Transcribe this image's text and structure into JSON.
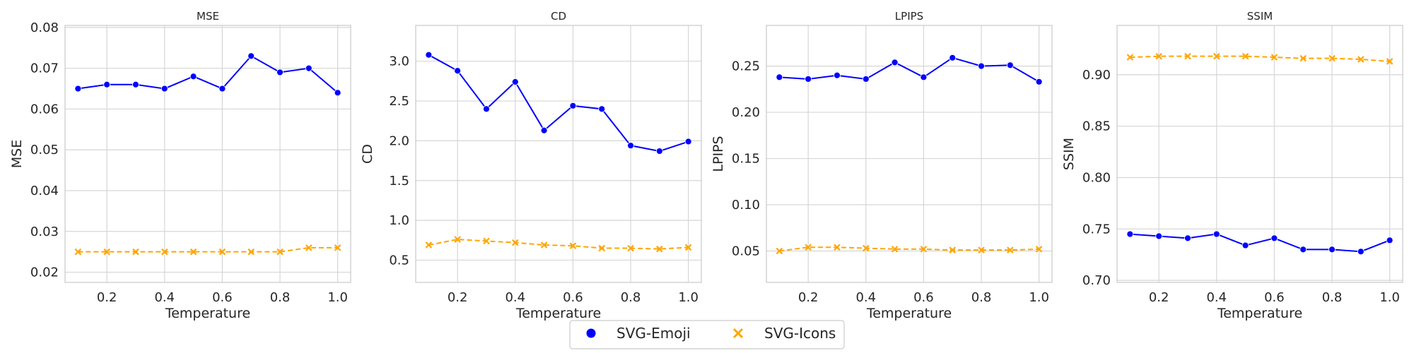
{
  "chart_data": [
    {
      "type": "line",
      "title": "MSE",
      "xlabel": "Temperature",
      "ylabel": "MSE",
      "x": [
        0.1,
        0.2,
        0.3,
        0.4,
        0.5,
        0.6,
        0.7,
        0.8,
        0.9,
        1.0
      ],
      "xlim": [
        0.055,
        1.045
      ],
      "ylim": [
        0.0175,
        0.0805
      ],
      "xticks": [
        0.2,
        0.4,
        0.6,
        0.8,
        1.0
      ],
      "xtick_labels": [
        "0.2",
        "0.4",
        "0.6",
        "0.8",
        "1.0"
      ],
      "yticks": [
        0.02,
        0.03,
        0.04,
        0.05,
        0.06,
        0.07,
        0.08
      ],
      "ytick_labels": [
        "0.02",
        "0.03",
        "0.04",
        "0.05",
        "0.06",
        "0.07",
        "0.08"
      ],
      "grid": true,
      "series": [
        {
          "name": "SVG-Emoji",
          "values": [
            0.065,
            0.066,
            0.066,
            0.065,
            0.068,
            0.065,
            0.073,
            0.069,
            0.07,
            0.064
          ]
        },
        {
          "name": "SVG-Icons",
          "values": [
            0.025,
            0.025,
            0.025,
            0.025,
            0.025,
            0.025,
            0.025,
            0.025,
            0.026,
            0.026
          ]
        }
      ]
    },
    {
      "type": "line",
      "title": "CD",
      "xlabel": "Temperature",
      "ylabel": "CD",
      "x": [
        0.1,
        0.2,
        0.3,
        0.4,
        0.5,
        0.6,
        0.7,
        0.8,
        0.9,
        1.0
      ],
      "xlim": [
        0.055,
        1.045
      ],
      "ylim": [
        0.22,
        3.45
      ],
      "xticks": [
        0.2,
        0.4,
        0.6,
        0.8,
        1.0
      ],
      "xtick_labels": [
        "0.2",
        "0.4",
        "0.6",
        "0.8",
        "1.0"
      ],
      "yticks": [
        0.5,
        1.0,
        1.5,
        2.0,
        2.5,
        3.0
      ],
      "ytick_labels": [
        "0.5",
        "1.0",
        "1.5",
        "2.0",
        "2.5",
        "3.0"
      ],
      "grid": true,
      "series": [
        {
          "name": "SVG-Emoji",
          "values": [
            3.08,
            2.88,
            2.4,
            2.74,
            2.13,
            2.44,
            2.4,
            1.94,
            1.87,
            1.99
          ]
        },
        {
          "name": "SVG-Icons",
          "values": [
            0.69,
            0.76,
            0.74,
            0.72,
            0.69,
            0.68,
            0.65,
            0.65,
            0.64,
            0.66
          ]
        }
      ]
    },
    {
      "type": "line",
      "title": "LPIPS",
      "xlabel": "Temperature",
      "ylabel": "LPIPS",
      "x": [
        0.1,
        0.2,
        0.3,
        0.4,
        0.5,
        0.6,
        0.7,
        0.8,
        0.9,
        1.0
      ],
      "xlim": [
        0.055,
        1.045
      ],
      "ylim": [
        0.016,
        0.294
      ],
      "xticks": [
        0.2,
        0.4,
        0.6,
        0.8,
        1.0
      ],
      "xtick_labels": [
        "0.2",
        "0.4",
        "0.6",
        "0.8",
        "1.0"
      ],
      "yticks": [
        0.05,
        0.1,
        0.15,
        0.2,
        0.25
      ],
      "ytick_labels": [
        "0.05",
        "0.10",
        "0.15",
        "0.20",
        "0.25"
      ],
      "grid": true,
      "series": [
        {
          "name": "SVG-Emoji",
          "values": [
            0.238,
            0.236,
            0.24,
            0.236,
            0.254,
            0.238,
            0.259,
            0.25,
            0.251,
            0.233
          ]
        },
        {
          "name": "SVG-Icons",
          "values": [
            0.05,
            0.054,
            0.054,
            0.053,
            0.052,
            0.052,
            0.051,
            0.051,
            0.051,
            0.052
          ]
        }
      ]
    },
    {
      "type": "line",
      "title": "SSIM",
      "xlabel": "Temperature",
      "ylabel": "SSIM",
      "x": [
        0.1,
        0.2,
        0.3,
        0.4,
        0.5,
        0.6,
        0.7,
        0.8,
        0.9,
        1.0
      ],
      "xlim": [
        0.055,
        1.045
      ],
      "ylim": [
        0.698,
        0.948
      ],
      "xticks": [
        0.2,
        0.4,
        0.6,
        0.8,
        1.0
      ],
      "xtick_labels": [
        "0.2",
        "0.4",
        "0.6",
        "0.8",
        "1.0"
      ],
      "yticks": [
        0.7,
        0.75,
        0.8,
        0.85,
        0.9
      ],
      "ytick_labels": [
        "0.70",
        "0.75",
        "0.80",
        "0.85",
        "0.90"
      ],
      "grid": true,
      "series": [
        {
          "name": "SVG-Emoji",
          "values": [
            0.745,
            0.743,
            0.741,
            0.745,
            0.734,
            0.741,
            0.73,
            0.73,
            0.728,
            0.739
          ]
        },
        {
          "name": "SVG-Icons",
          "values": [
            0.917,
            0.918,
            0.918,
            0.918,
            0.918,
            0.917,
            0.916,
            0.916,
            0.915,
            0.913
          ]
        }
      ]
    }
  ],
  "legend": {
    "position": "bottom-center",
    "entries": [
      {
        "label": "SVG-Emoji",
        "marker": "circle",
        "color": "#0000ff",
        "line": "solid"
      },
      {
        "label": "SVG-Icons",
        "marker": "x",
        "color": "#ffa500",
        "line": "dashed"
      }
    ]
  }
}
